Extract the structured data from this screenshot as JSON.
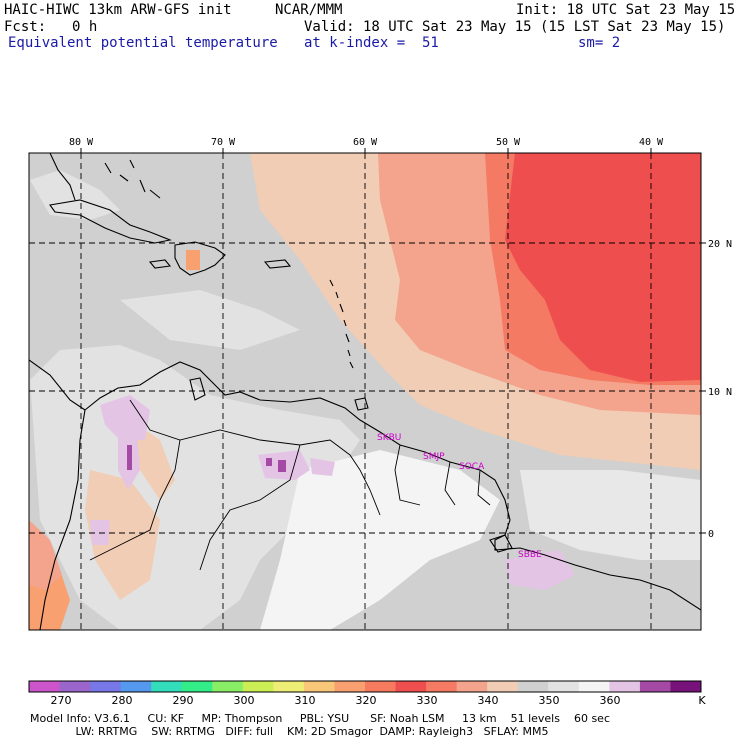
{
  "header": {
    "model_title": "HAIC-HIWC 13km ARW-GFS init",
    "center": "NCAR/MMM",
    "init": "Init: 18 UTC Sat 23 May 15",
    "fcst_label": "Fcst:",
    "fcst_value": "0 h",
    "valid": "Valid: 18 UTC Sat 23 May 15 (15 LST Sat 23 May 15)",
    "field": "Equivalent potential temperature",
    "level": "at k-index =  51",
    "smoothing": "sm= 2"
  },
  "map": {
    "longitudes": [
      "80 W",
      "70 W",
      "60 W",
      "50 W",
      "40 W"
    ],
    "latitudes": [
      "20 N",
      "10 N",
      "0"
    ],
    "stations": [
      "SKBU",
      "SMJP",
      "SOCA",
      "SBBE"
    ]
  },
  "colorbar": {
    "labels": [
      "270",
      "280",
      "290",
      "300",
      "310",
      "320",
      "330",
      "340",
      "350",
      "360"
    ],
    "unit": "K",
    "colors": [
      "#cc55cc",
      "#9a66cc",
      "#7777e8",
      "#5599ee",
      "#33ddbb",
      "#33ee88",
      "#88ee66",
      "#ccee55",
      "#eeee77",
      "#f8c878",
      "#f8a070",
      "#f57a5e",
      "#ef4e4e",
      "#f47a64",
      "#f4a48c",
      "#f0cdb4",
      "#d0d0d0",
      "#e2e2e2",
      "#f4f4f4",
      "#e4c4e4",
      "#a44aa4",
      "#76127a"
    ]
  },
  "footer": {
    "line1": "Model Info: V3.6.1     CU: KF     MP: Thompson     PBL: YSU      SF: Noah LSM     13 km    51 levels    60 sec",
    "line2": "             LW: RRTMG    SW: RRTMG   DIFF: full    KM: 2D Smagor  DAMP: Rayleigh3   SFLAY: MM5"
  }
}
